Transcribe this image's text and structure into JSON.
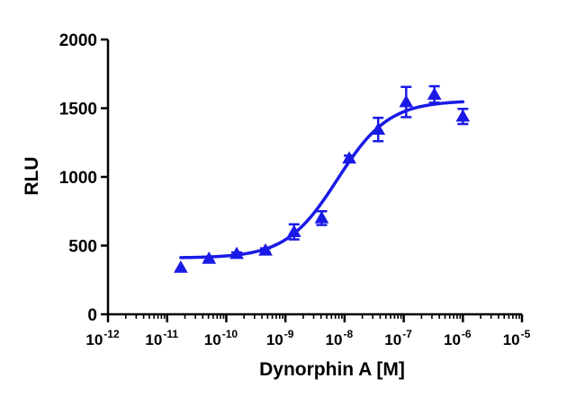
{
  "chart_data": {
    "type": "scatter",
    "xlabel": "Dynorphin A [M]",
    "ylabel": "RLU",
    "x_scale": "log10",
    "xlim": [
      1e-12,
      1e-05
    ],
    "ylim": [
      0,
      2000
    ],
    "y_ticks": [
      0,
      500,
      1000,
      1500,
      2000
    ],
    "x_tick_labels": [
      {
        "base": "10",
        "exp": "-12"
      },
      {
        "base": "10",
        "exp": "-11"
      },
      {
        "base": "10",
        "exp": "-10"
      },
      {
        "base": "10",
        "exp": "-9"
      },
      {
        "base": "10",
        "exp": "-8"
      },
      {
        "base": "10",
        "exp": "-7"
      },
      {
        "base": "10",
        "exp": "-6"
      },
      {
        "base": "10",
        "exp": "-5"
      }
    ],
    "color": "#1a1ae6",
    "marker": "triangle",
    "points": [
      {
        "x": 1.7e-11,
        "y": 340,
        "err": 0
      },
      {
        "x": 5.1e-11,
        "y": 405,
        "err": 15
      },
      {
        "x": 1.5e-10,
        "y": 440,
        "err": 10
      },
      {
        "x": 4.6e-10,
        "y": 465,
        "err": 15
      },
      {
        "x": 1.4e-09,
        "y": 600,
        "err": 55
      },
      {
        "x": 4.1e-09,
        "y": 700,
        "err": 50
      },
      {
        "x": 1.2e-08,
        "y": 1135,
        "err": 20
      },
      {
        "x": 3.7e-08,
        "y": 1345,
        "err": 85
      },
      {
        "x": 1.1e-07,
        "y": 1545,
        "err": 110
      },
      {
        "x": 3.3e-07,
        "y": 1600,
        "err": 60
      },
      {
        "x": 1e-06,
        "y": 1440,
        "err": 55
      }
    ],
    "fit_curve": {
      "model": "four-parameter-logistic",
      "bottom": 410,
      "top": 1555,
      "log_ec50": -8.12,
      "hill_slope": 1.0,
      "x_range": [
        1.7e-11,
        1e-06
      ]
    },
    "grid": false,
    "legend": "none"
  }
}
